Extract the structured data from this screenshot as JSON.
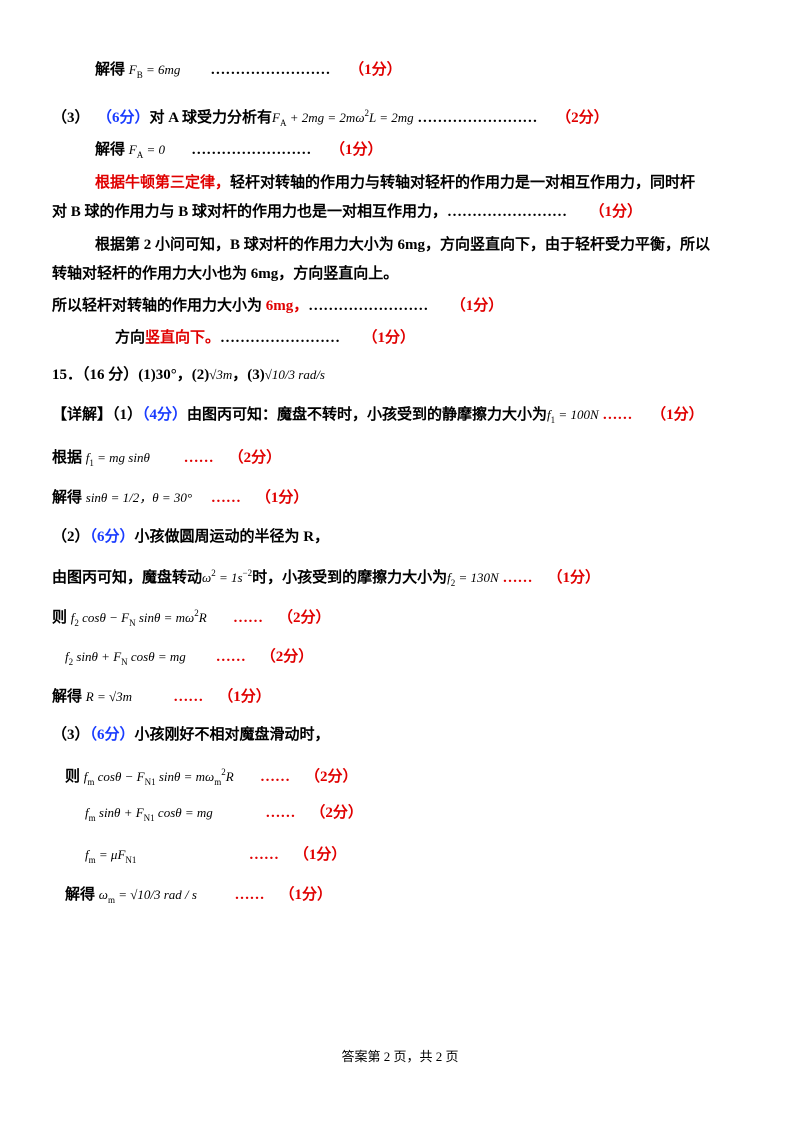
{
  "lines": [
    [
      [
        "解得 ",
        "b"
      ],
      [
        "F",
        "m"
      ],
      [
        "B",
        "s"
      ],
      [
        " = 6mg",
        "m"
      ],
      [
        "        ……………………     ",
        "b"
      ],
      [
        "（1分）",
        "r"
      ]
    ],
    [
      [
        "（3）  ",
        "b"
      ],
      [
        "（6分）",
        "u"
      ],
      [
        "对 A 球受力分析有",
        "b"
      ],
      [
        "F",
        "m"
      ],
      [
        "A",
        "s"
      ],
      [
        " + 2mg = 2mω",
        "m"
      ],
      [
        "2",
        "p"
      ],
      [
        "L = 2mg",
        "m"
      ],
      [
        " ……………………     ",
        "b"
      ],
      [
        "（2分）",
        "r"
      ]
    ],
    [
      [
        "解得 ",
        "b"
      ],
      [
        "F",
        "m"
      ],
      [
        "A",
        "s"
      ],
      [
        " = 0",
        "m"
      ],
      [
        "       ……………………     ",
        "b"
      ],
      [
        "（1分）",
        "r"
      ]
    ],
    [
      [
        "根据牛顿第三定律，",
        "r"
      ],
      [
        "轻杆对转轴的作用力与转轴对轻杆的作用力是一对相互作用力，同时杆",
        "b"
      ]
    ],
    [
      [
        "对 B 球的作用力与 B 球对杆的作用力也是一对相互作用力，……………………      ",
        "b"
      ],
      [
        "（1分）",
        "r"
      ]
    ],
    [
      [
        "根据第 2 小问可知，B 球对杆的作用力大小为 6mg，方向竖直向下，由于轻杆受力平衡，所以",
        "b"
      ]
    ],
    [
      [
        "转轴对轻杆的作用力大小也为 6mg，方向竖直向上。",
        "b"
      ]
    ],
    [
      [
        "所以轻杆对转轴的作用力大小为 ",
        "b"
      ],
      [
        "6mg，",
        "r"
      ],
      [
        "……………………      ",
        "b"
      ],
      [
        "（1分）",
        "r"
      ]
    ],
    [
      [
        "方向",
        "b"
      ],
      [
        "竖直向下。",
        "r"
      ],
      [
        "……………………      ",
        "b"
      ],
      [
        "（1分）",
        "r"
      ]
    ],
    [
      [
        "15．（16 分）(1)30°，(2)",
        "b"
      ],
      [
        "√3m",
        "m"
      ],
      [
        "，(3)",
        "b"
      ],
      [
        "√10/3 rad/s",
        "m"
      ]
    ],
    [
      [
        "【详解】（1）",
        "b"
      ],
      [
        "（4分）",
        "u"
      ],
      [
        "由图丙可知：魔盘不转时，小孩受到的静摩擦力大小为",
        "b"
      ],
      [
        "f",
        "m"
      ],
      [
        "1",
        "s"
      ],
      [
        " = 100N",
        "m"
      ],
      [
        " ……     ",
        "r"
      ],
      [
        "（1分）",
        "r"
      ]
    ],
    [
      [
        "根据 ",
        "b"
      ],
      [
        "f",
        "m"
      ],
      [
        "1",
        "s"
      ],
      [
        " = mg sinθ",
        "m"
      ],
      [
        "         ……    ",
        "r"
      ],
      [
        "（2分）",
        "r"
      ]
    ],
    [
      [
        "解得 ",
        "b"
      ],
      [
        "sinθ = 1/2，θ = 30°",
        "m"
      ],
      [
        "     ……    ",
        "r"
      ],
      [
        "（1分）",
        "r"
      ]
    ],
    [
      [
        "（2）",
        "b"
      ],
      [
        "（6分）",
        "u"
      ],
      [
        "小孩做圆周运动的半径为 R，",
        "b"
      ]
    ],
    [
      [
        "由图丙可知，魔盘转动",
        "b"
      ],
      [
        "ω",
        "m"
      ],
      [
        "2",
        "p"
      ],
      [
        " = 1s",
        "m"
      ],
      [
        "−2",
        "p"
      ],
      [
        "时，小孩受到的摩擦力大小为",
        "b"
      ],
      [
        "f",
        "m"
      ],
      [
        "2",
        "s"
      ],
      [
        " = 130N",
        "m"
      ],
      [
        " ……    ",
        "r"
      ],
      [
        "（1分）",
        "r"
      ]
    ],
    [
      [
        "则 ",
        "b"
      ],
      [
        "f",
        "m"
      ],
      [
        "2",
        "s"
      ],
      [
        " cosθ − F",
        "m"
      ],
      [
        "N",
        "s"
      ],
      [
        " sinθ = mω",
        "m"
      ],
      [
        "2",
        "p"
      ],
      [
        "R",
        "m"
      ],
      [
        "       ……    ",
        "r"
      ],
      [
        "（2分）",
        "r"
      ]
    ],
    [
      [
        "f",
        "m"
      ],
      [
        "2",
        "s"
      ],
      [
        " sinθ + F",
        "m"
      ],
      [
        "N",
        "s"
      ],
      [
        " cosθ = mg",
        "m"
      ],
      [
        "        ……    ",
        "r"
      ],
      [
        "（2分）",
        "r"
      ]
    ],
    [
      [
        "解得 ",
        "b"
      ],
      [
        "R = √3m",
        "m"
      ],
      [
        "           ……    ",
        "r"
      ],
      [
        "（1分）",
        "r"
      ]
    ],
    [
      [
        "（3）",
        "b"
      ],
      [
        "（6分）",
        "u"
      ],
      [
        "小孩刚好不相对魔盘滑动时，",
        "b"
      ]
    ],
    [
      [
        "则 ",
        "b"
      ],
      [
        "f",
        "m"
      ],
      [
        "m",
        "s"
      ],
      [
        " cosθ − F",
        "m"
      ],
      [
        "N1",
        "s"
      ],
      [
        " sinθ = mω",
        "m"
      ],
      [
        "m",
        "s"
      ],
      [
        "2",
        "p"
      ],
      [
        "R",
        "m"
      ],
      [
        "       ……    ",
        "r"
      ],
      [
        "（2分）",
        "r"
      ]
    ],
    [
      [
        "f",
        "m"
      ],
      [
        "m",
        "s"
      ],
      [
        " sinθ + F",
        "m"
      ],
      [
        "N1",
        "s"
      ],
      [
        " cosθ = mg",
        "m"
      ],
      [
        "              ……    ",
        "r"
      ],
      [
        "（2分）",
        "r"
      ]
    ],
    [
      [
        "f",
        "m"
      ],
      [
        "m",
        "s"
      ],
      [
        " = μF",
        "m"
      ],
      [
        "N1",
        "s"
      ],
      [
        "                              ……    ",
        "r"
      ],
      [
        "（1分）",
        "r"
      ]
    ],
    [
      [
        "解得 ",
        "b"
      ],
      [
        "ω",
        "m"
      ],
      [
        "m",
        "s"
      ],
      [
        " = √10/3 rad / s",
        "m"
      ],
      [
        "          ……    ",
        "r"
      ],
      [
        "（1分）",
        "r"
      ]
    ]
  ],
  "footer": "答案第 2 页，共 2 页"
}
